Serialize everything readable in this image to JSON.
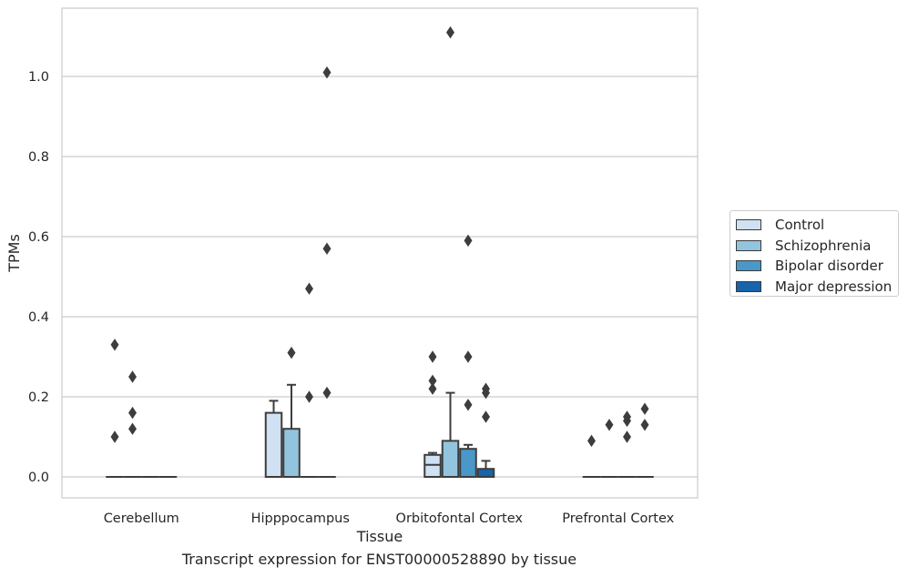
{
  "caption": "Transcript expression for ENST00000528890 by tissue",
  "chart_data": {
    "type": "box",
    "title": "",
    "xlabel": "Tissue",
    "ylabel": "TPMs",
    "categories": [
      "Cerebellum",
      "Hipppocampus",
      "Orbitofontal Cortex",
      "Prefrontal Cortex"
    ],
    "ylim": [
      -0.055,
      1.17
    ],
    "yticks": [
      0.0,
      0.2,
      0.4,
      0.6,
      0.8,
      1.0
    ],
    "ytick_labels": [
      "0.0",
      "0.2",
      "0.4",
      "0.6",
      "0.8",
      "1.0"
    ],
    "grid": "horizontal",
    "legend_position": "right",
    "series": [
      {
        "name": "Control",
        "color": "#cfe1f2",
        "boxes": [
          {
            "q1": 0,
            "median": 0,
            "q3": 0,
            "whisker_low": 0,
            "whisker_high": 0,
            "outliers": [
              0.1,
              0.33
            ]
          },
          {
            "q1": 0,
            "median": 0,
            "q3": 0.16,
            "whisker_low": 0,
            "whisker_high": 0.19,
            "outliers": []
          },
          {
            "q1": 0,
            "median": 0.03,
            "q3": 0.055,
            "whisker_low": 0,
            "whisker_high": 0.06,
            "outliers": [
              0.22,
              0.24,
              0.3
            ]
          },
          {
            "q1": 0,
            "median": 0,
            "q3": 0,
            "whisker_low": 0,
            "whisker_high": 0,
            "outliers": [
              0.09
            ]
          }
        ]
      },
      {
        "name": "Schizophrenia",
        "color": "#93c4de",
        "boxes": [
          {
            "q1": 0,
            "median": 0,
            "q3": 0,
            "whisker_low": 0,
            "whisker_high": 0,
            "outliers": [
              0.12,
              0.16,
              0.25
            ]
          },
          {
            "q1": 0,
            "median": 0,
            "q3": 0.12,
            "whisker_low": 0,
            "whisker_high": 0.23,
            "outliers": [
              0.31
            ]
          },
          {
            "q1": 0,
            "median": 0,
            "q3": 0.09,
            "whisker_low": 0,
            "whisker_high": 0.21,
            "outliers": [
              1.11
            ]
          },
          {
            "q1": 0,
            "median": 0,
            "q3": 0,
            "whisker_low": 0,
            "whisker_high": 0,
            "outliers": [
              0.13
            ]
          }
        ]
      },
      {
        "name": "Bipolar disorder",
        "color": "#4a98c9",
        "boxes": [
          {
            "q1": 0,
            "median": 0,
            "q3": 0,
            "whisker_low": 0,
            "whisker_high": 0,
            "outliers": []
          },
          {
            "q1": 0,
            "median": 0,
            "q3": 0,
            "whisker_low": 0,
            "whisker_high": 0,
            "outliers": [
              0.2,
              0.47
            ]
          },
          {
            "q1": 0,
            "median": 0,
            "q3": 0.07,
            "whisker_low": 0,
            "whisker_high": 0.08,
            "outliers": [
              0.18,
              0.3,
              0.59
            ]
          },
          {
            "q1": 0,
            "median": 0,
            "q3": 0,
            "whisker_low": 0,
            "whisker_high": 0,
            "outliers": [
              0.1,
              0.14,
              0.15
            ]
          }
        ]
      },
      {
        "name": "Major depression",
        "color": "#1764ab",
        "boxes": [
          {
            "q1": 0,
            "median": 0,
            "q3": 0,
            "whisker_low": 0,
            "whisker_high": 0,
            "outliers": []
          },
          {
            "q1": 0,
            "median": 0,
            "q3": 0,
            "whisker_low": 0,
            "whisker_high": 0,
            "outliers": [
              0.21,
              0.57,
              1.01
            ]
          },
          {
            "q1": 0,
            "median": 0,
            "q3": 0.02,
            "whisker_low": 0,
            "whisker_high": 0.04,
            "outliers": [
              0.15,
              0.21,
              0.22
            ]
          },
          {
            "q1": 0,
            "median": 0,
            "q3": 0,
            "whisker_low": 0,
            "whisker_high": 0,
            "outliers": [
              0.13,
              0.17
            ]
          }
        ]
      }
    ]
  }
}
